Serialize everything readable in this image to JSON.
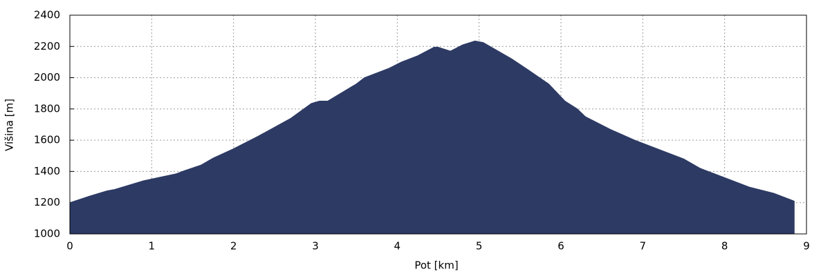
{
  "chart_data": {
    "type": "area",
    "x_label": "Pot [km]",
    "y_label": "Višina [m]",
    "x": [
      0,
      0.2,
      0.45,
      0.55,
      0.9,
      1.3,
      1.4,
      1.6,
      1.75,
      2.0,
      2.3,
      2.7,
      2.95,
      3.05,
      3.15,
      3.5,
      3.6,
      3.9,
      4.05,
      4.25,
      4.45,
      4.5,
      4.65,
      4.8,
      4.95,
      5.05,
      5.4,
      5.6,
      5.85,
      6.05,
      6.2,
      6.3,
      6.6,
      6.9,
      7.2,
      7.5,
      7.7,
      8.0,
      8.3,
      8.6,
      8.85
    ],
    "values": [
      1200,
      1235,
      1275,
      1285,
      1340,
      1385,
      1405,
      1440,
      1485,
      1545,
      1625,
      1740,
      1835,
      1850,
      1850,
      1960,
      2000,
      2060,
      2100,
      2140,
      2195,
      2195,
      2170,
      2210,
      2235,
      2225,
      2120,
      2050,
      1960,
      1850,
      1800,
      1750,
      1670,
      1600,
      1540,
      1480,
      1420,
      1360,
      1300,
      1260,
      1210
    ],
    "color": "#2d3a64",
    "xlim": [
      0,
      9
    ],
    "xticks": [
      0,
      1,
      2,
      3,
      4,
      5,
      6,
      7,
      8,
      9
    ],
    "ylim": [
      1000,
      2400
    ],
    "yticks": [
      1000,
      1200,
      1400,
      1600,
      1800,
      2000,
      2200,
      2400
    ],
    "grid": true
  }
}
